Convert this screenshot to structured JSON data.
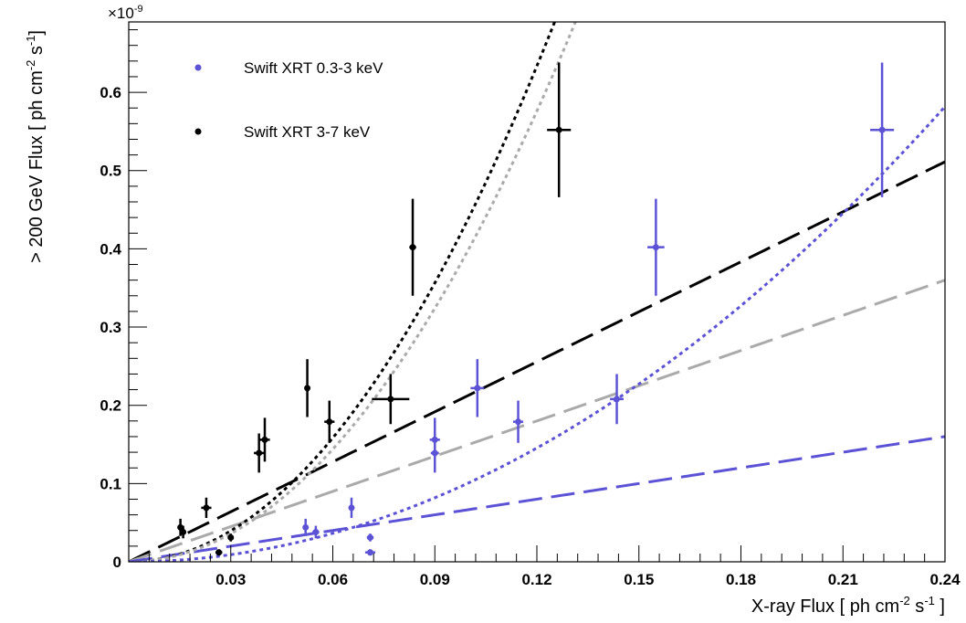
{
  "chart_data": {
    "type": "scatter",
    "title": "",
    "xlabel_main": "X-ray Flux [ ph cm",
    "xlabel_exp1": "-2",
    "xlabel_mid": " s",
    "xlabel_exp2": "-1",
    "xlabel_end": " ]",
    "ylabel_main": "> 200 GeV Flux  [ ph cm",
    "ylabel_exp1": "-2",
    "ylabel_mid": " s",
    "ylabel_exp2": "-1",
    "ylabel_end": "]",
    "y_multiplier_base": "×10",
    "y_multiplier_exp": "-9",
    "xlim": [
      0,
      0.24
    ],
    "ylim": [
      0,
      0.69
    ],
    "x_ticks": [
      {
        "value": 0.03,
        "label": "0.03"
      },
      {
        "value": 0.06,
        "label": "0.06"
      },
      {
        "value": 0.09,
        "label": "0.09"
      },
      {
        "value": 0.12,
        "label": "0.12"
      },
      {
        "value": 0.15,
        "label": "0.15"
      },
      {
        "value": 0.18,
        "label": "0.18"
      },
      {
        "value": 0.21,
        "label": "0.21"
      },
      {
        "value": 0.24,
        "label": "0.24"
      }
    ],
    "y_ticks": [
      {
        "value": 0,
        "label": "0"
      },
      {
        "value": 0.1,
        "label": "0.1"
      },
      {
        "value": 0.2,
        "label": "0.2"
      },
      {
        "value": 0.3,
        "label": "0.3"
      },
      {
        "value": 0.4,
        "label": "0.4"
      },
      {
        "value": 0.5,
        "label": "0.5"
      },
      {
        "value": 0.6,
        "label": "0.6"
      }
    ],
    "grid": false,
    "legend_position": "top-left",
    "series": [
      {
        "name": "Swift XRT 0.3-3 keV",
        "color": "#5b52d6",
        "points": [
          {
            "x": 0.052,
            "y": 0.044,
            "xerr": 0.0008,
            "yerr": 0.011
          },
          {
            "x": 0.055,
            "y": 0.038,
            "xerr": 0.001,
            "yerr": 0.008
          },
          {
            "x": 0.0655,
            "y": 0.069,
            "xerr": 0.0008,
            "yerr": 0.013
          },
          {
            "x": 0.071,
            "y": 0.031,
            "xerr": 0.001,
            "yerr": 0.005
          },
          {
            "x": 0.071,
            "y": 0.012,
            "xerr": 0.0015,
            "yerr": 0.004
          },
          {
            "x": 0.09,
            "y": 0.156,
            "xerr": 0.0015,
            "yerr": 0.028
          },
          {
            "x": 0.09,
            "y": 0.139,
            "xerr": 0.0012,
            "yerr": 0.025
          },
          {
            "x": 0.1025,
            "y": 0.222,
            "xerr": 0.002,
            "yerr": 0.037
          },
          {
            "x": 0.1145,
            "y": 0.179,
            "xerr": 0.0015,
            "yerr": 0.027
          },
          {
            "x": 0.1435,
            "y": 0.208,
            "xerr": 0.002,
            "yerr": 0.032
          },
          {
            "x": 0.155,
            "y": 0.402,
            "xerr": 0.0025,
            "yerr": 0.062
          },
          {
            "x": 0.2215,
            "y": 0.552,
            "xerr": 0.0035,
            "yerr": 0.086
          }
        ]
      },
      {
        "name": "Swift XRT 3-7 keV",
        "color": "#000000",
        "points": [
          {
            "x": 0.0152,
            "y": 0.044,
            "xerr": 0.0006,
            "yerr": 0.011
          },
          {
            "x": 0.016,
            "y": 0.038,
            "xerr": 0.0006,
            "yerr": 0.008
          },
          {
            "x": 0.0228,
            "y": 0.069,
            "xerr": 0.0015,
            "yerr": 0.013
          },
          {
            "x": 0.0265,
            "y": 0.012,
            "xerr": 0.001,
            "yerr": 0.004
          },
          {
            "x": 0.03,
            "y": 0.031,
            "xerr": 0.0008,
            "yerr": 0.005
          },
          {
            "x": 0.0383,
            "y": 0.139,
            "xerr": 0.0015,
            "yerr": 0.025
          },
          {
            "x": 0.04,
            "y": 0.156,
            "xerr": 0.0015,
            "yerr": 0.028
          },
          {
            "x": 0.0525,
            "y": 0.222,
            "xerr": 0.0005,
            "yerr": 0.037
          },
          {
            "x": 0.059,
            "y": 0.179,
            "xerr": 0.0015,
            "yerr": 0.027
          },
          {
            "x": 0.077,
            "y": 0.208,
            "xerr": 0.0055,
            "yerr": 0.032
          },
          {
            "x": 0.0835,
            "y": 0.402,
            "xerr": 0.001,
            "yerr": 0.062
          },
          {
            "x": 0.1265,
            "y": 0.552,
            "xerr": 0.0035,
            "yerr": 0.086
          }
        ]
      }
    ],
    "fit_lines": [
      {
        "color": "#000000",
        "style": "long-dash",
        "form": "linear",
        "a": 2.13,
        "p": 1
      },
      {
        "color": "#aaaaaa",
        "style": "long-dash",
        "form": "linear",
        "a": 1.5,
        "p": 1
      },
      {
        "color": "#5b52d6",
        "style": "long-dash",
        "form": "linear",
        "a": 0.667,
        "p": 1
      },
      {
        "color": "#000000",
        "style": "dot",
        "form": "quadratic",
        "a": 44.0,
        "p": 2
      },
      {
        "color": "#aaaaaa",
        "style": "dot",
        "form": "quadratic",
        "a": 40.0,
        "p": 2
      },
      {
        "color": "#5b52d6",
        "style": "dot",
        "form": "quadratic",
        "a": 10.1,
        "p": 2
      }
    ]
  }
}
